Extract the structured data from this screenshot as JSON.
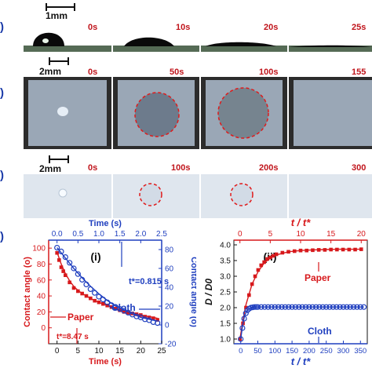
{
  "rows": {
    "a": {
      "letter": ")",
      "scale": "1mm",
      "times": [
        "0s",
        "10s",
        "20s",
        "25s"
      ]
    },
    "b": {
      "letter": ")",
      "scale": "2mm",
      "times": [
        "0s",
        "50s",
        "100s",
        "155"
      ]
    },
    "c": {
      "letter": ")",
      "scale": "2mm",
      "times": [
        "0s",
        "100s",
        "200s",
        "300"
      ]
    },
    "d": {
      "letter": ")"
    }
  },
  "colors": {
    "red": "#d7191c",
    "blue": "#1f3fbf",
    "paper_texture": "#9aa7b6",
    "cloth_texture": "#dfe6ee"
  },
  "chart_data": [
    {
      "type": "scatter",
      "panel_label": "(i)",
      "title": "",
      "xlabel": "Time (s)",
      "xlabel_top": "Time (s)",
      "ylabel_left": "Contact angle (o)",
      "ylabel_right": "Contact angle (o)",
      "xlim_bottom": [
        -2,
        25
      ],
      "xticks_bottom": [
        "0",
        "5",
        "10",
        "15",
        "20",
        "25"
      ],
      "xlim_top": [
        -0.2,
        2.5
      ],
      "xticks_top": [
        "0.0",
        "0.5",
        "1.0",
        "1.5",
        "2.0",
        "2.5"
      ],
      "ylim_left": [
        -20,
        110
      ],
      "yticks_left": [
        "0",
        "20",
        "40",
        "60",
        "80",
        "100"
      ],
      "ylim_right": [
        -20,
        90
      ],
      "yticks_right": [
        "-20",
        "0",
        "20",
        "40",
        "60",
        "80"
      ],
      "annotations": {
        "cloth_tstar": "t*=0.815 s",
        "paper_tstar": "t*=8.47 s",
        "cloth": "Cloth",
        "paper": "Paper"
      },
      "series": [
        {
          "name": "Paper",
          "axis": "left-bottom",
          "marker": "square",
          "x": [
            0,
            0.5,
            1,
            1.5,
            2,
            3,
            4,
            5,
            6,
            7,
            8,
            9,
            10,
            11,
            12,
            13,
            14,
            15,
            16,
            17,
            18,
            19,
            20,
            21,
            22,
            23,
            24
          ],
          "y": [
            94,
            85,
            76,
            71,
            66,
            57,
            50,
            46,
            43,
            40,
            37,
            34,
            32,
            30,
            28,
            26,
            24,
            22,
            20,
            19,
            18,
            17,
            16,
            14,
            13,
            12,
            10
          ]
        },
        {
          "name": "Paper fit",
          "axis": "left-bottom",
          "marker": "line",
          "x": [
            0,
            1,
            2,
            3,
            4,
            5,
            6,
            7,
            8,
            9,
            10,
            12,
            14,
            16,
            18,
            20,
            22,
            24
          ],
          "y": [
            95,
            80,
            68,
            59,
            52,
            47,
            43,
            40,
            37,
            34,
            32,
            28,
            24,
            21,
            18,
            16,
            14,
            12
          ]
        },
        {
          "name": "Cloth",
          "axis": "right-top",
          "marker": "circle",
          "x": [
            0,
            0.1,
            0.2,
            0.3,
            0.4,
            0.5,
            0.6,
            0.7,
            0.8,
            0.9,
            1.0,
            1.1,
            1.2,
            1.3,
            1.4,
            1.5,
            1.6,
            1.7,
            1.8,
            1.9,
            2.0,
            2.1,
            2.2,
            2.3,
            2.4
          ],
          "y": [
            82,
            78,
            72,
            66,
            60,
            54,
            48,
            43,
            38,
            34,
            30,
            27,
            24,
            21,
            19,
            17,
            15,
            13,
            11,
            9,
            8,
            6,
            5,
            3,
            2
          ]
        },
        {
          "name": "Cloth fit",
          "axis": "right-top",
          "marker": "line",
          "x": [
            0,
            0.2,
            0.4,
            0.6,
            0.8,
            1.0,
            1.2,
            1.4,
            1.6,
            1.8,
            2.0,
            2.2,
            2.4
          ],
          "y": [
            82,
            71,
            60,
            50,
            41,
            33,
            26,
            20,
            16,
            12,
            8,
            6,
            4
          ]
        }
      ]
    },
    {
      "type": "scatter",
      "panel_label": "(ii)",
      "title": "",
      "xlabel": "t / t*",
      "xlabel_top": "t / t*",
      "ylabel_left": "D / D0",
      "xlim_bottom": [
        -20,
        370
      ],
      "xticks_bottom": [
        "0",
        "50",
        "100",
        "150",
        "200",
        "250",
        "300",
        "350"
      ],
      "xlim_top": [
        -1,
        21
      ],
      "xticks_top": [
        "0",
        "5",
        "10",
        "15",
        "20"
      ],
      "ylim_left": [
        0.85,
        4.15
      ],
      "yticks_left": [
        "1.0",
        "1.5",
        "2.0",
        "2.5",
        "3.0",
        "3.5",
        "4.0"
      ],
      "annotations": {
        "paper": "Paper",
        "cloth": "Cloth"
      },
      "series": [
        {
          "name": "Paper",
          "axis": "left-top",
          "marker": "square",
          "x": [
            0,
            0.5,
            1,
            1.5,
            2,
            2.5,
            3,
            3.5,
            4,
            4.5,
            5,
            5.5,
            6,
            7,
            8,
            9,
            10,
            11,
            12,
            13,
            14,
            15,
            16,
            17,
            18,
            19,
            20
          ],
          "y": [
            1.0,
            1.5,
            2.0,
            2.4,
            2.75,
            3.0,
            3.2,
            3.35,
            3.45,
            3.55,
            3.6,
            3.65,
            3.7,
            3.75,
            3.78,
            3.8,
            3.82,
            3.82,
            3.83,
            3.84,
            3.84,
            3.85,
            3.85,
            3.85,
            3.85,
            3.85,
            3.86
          ]
        },
        {
          "name": "Paper fit",
          "axis": "left-top",
          "marker": "line",
          "x": [
            0,
            0.5,
            1,
            2,
            3,
            4,
            5,
            6,
            8,
            10,
            12,
            14,
            16,
            18,
            20
          ],
          "y": [
            1.0,
            1.6,
            2.1,
            2.75,
            3.15,
            3.42,
            3.58,
            3.68,
            3.78,
            3.82,
            3.84,
            3.85,
            3.86,
            3.86,
            3.86
          ]
        },
        {
          "name": "Cloth",
          "axis": "left-bottom",
          "marker": "circle",
          "x": [
            0,
            5,
            10,
            15,
            20,
            25,
            30,
            35,
            40,
            45,
            50,
            60,
            70,
            80,
            90,
            100,
            110,
            120,
            130,
            140,
            150,
            160,
            170,
            180,
            190,
            200,
            210,
            220,
            230,
            240,
            250,
            260,
            270,
            280,
            290,
            300,
            310,
            320,
            330,
            340,
            350,
            360
          ],
          "y": [
            1.0,
            1.35,
            1.65,
            1.82,
            1.92,
            1.97,
            2.0,
            2.01,
            2.02,
            2.02,
            2.02,
            2.02,
            2.02,
            2.02,
            2.02,
            2.02,
            2.02,
            2.02,
            2.02,
            2.02,
            2.02,
            2.02,
            2.02,
            2.02,
            2.02,
            2.02,
            2.02,
            2.02,
            2.02,
            2.02,
            2.02,
            2.02,
            2.02,
            2.02,
            2.02,
            2.02,
            2.02,
            2.02,
            2.02,
            2.02,
            2.02,
            2.02
          ]
        },
        {
          "name": "Cloth fit",
          "axis": "left-bottom",
          "marker": "line",
          "x": [
            0,
            5,
            10,
            15,
            20,
            30,
            40,
            60,
            100,
            200,
            360
          ],
          "y": [
            1.0,
            1.4,
            1.68,
            1.84,
            1.93,
            2.0,
            2.02,
            2.02,
            2.02,
            2.02,
            2.02
          ]
        }
      ]
    }
  ]
}
